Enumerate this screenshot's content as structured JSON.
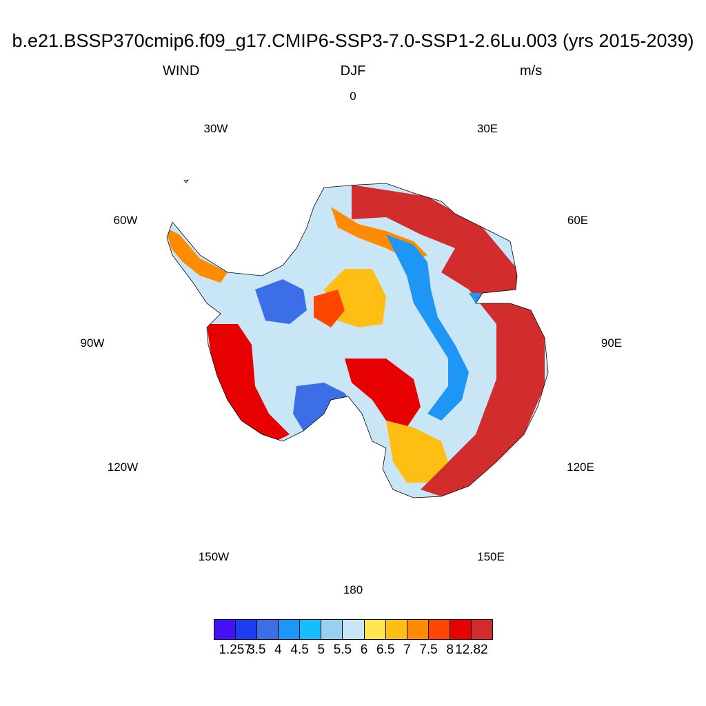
{
  "title": "b.e21.BSSP370cmip6.f09_g17.CMIP6-SSP3-7.0-SSP1-2.6Lu.003 (yrs 2015-2039)",
  "subtitles": {
    "left": "WIND",
    "center": "DJF",
    "right": "m/s"
  },
  "longitude_labels": [
    "0",
    "30E",
    "60E",
    "90E",
    "120E",
    "150E",
    "180",
    "150W",
    "120W",
    "90W",
    "60W",
    "30W"
  ],
  "colorbar": {
    "colors": [
      "#4410fa",
      "#1e3cf0",
      "#3c6ee8",
      "#1e96f5",
      "#14beff",
      "#96d2f0",
      "#c8e6f5",
      "#ffe650",
      "#ffbe14",
      "#ff8c00",
      "#ff4600",
      "#e60000",
      "#d22d2d"
    ],
    "labels": [
      "1.257",
      "3.5",
      "4",
      "4.5",
      "5",
      "5.5",
      "6",
      "6.5",
      "7",
      "7.5",
      "8",
      "12.82"
    ]
  },
  "map": {
    "projection": "south polar stereographic",
    "region": "Antarctica",
    "season": "DJF",
    "variable": "WIND",
    "units": "m/s"
  }
}
